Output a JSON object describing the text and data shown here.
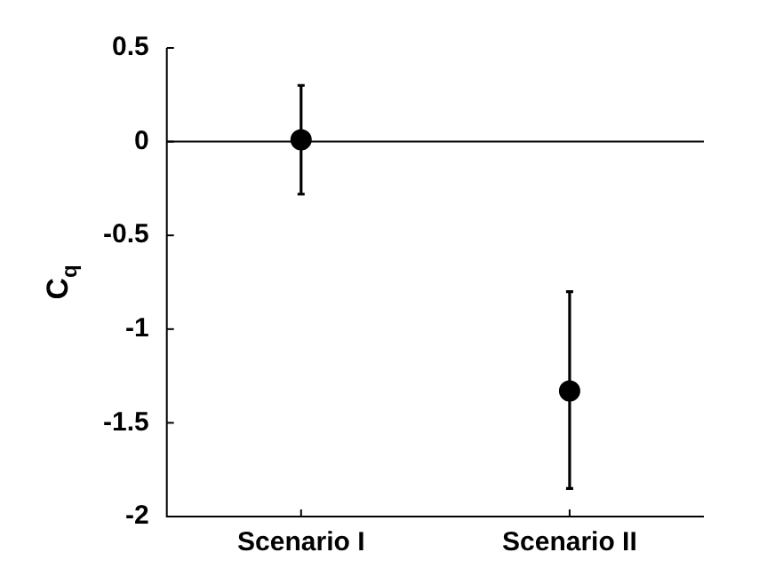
{
  "chart_data": {
    "type": "scatter",
    "ylabel": "C$_{q}$",
    "categories": [
      "Scenario I",
      "Scenario II"
    ],
    "series": [
      {
        "color": "#000000",
        "values": [
          0.01,
          -1.33
        ],
        "errors": [
          [
            -0.28,
            0.3
          ],
          [
            -1.85,
            -0.8
          ]
        ]
      }
    ],
    "ylim": [
      -2,
      0.5
    ],
    "yticks": [
      -2,
      -1.5,
      -1,
      -0.5,
      0,
      0.5
    ],
    "ref_lines": [
      {
        "axis": "y",
        "value": 0,
        "color": "#000000"
      }
    ],
    "marker": "circle",
    "grid": false,
    "legend": false
  }
}
